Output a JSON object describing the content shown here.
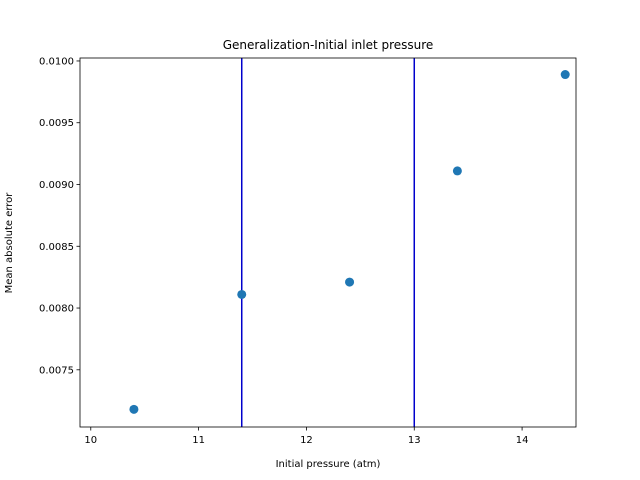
{
  "chart_data": {
    "type": "scatter",
    "title": "Generalization-Initial inlet pressure",
    "xlabel": "Initial pressure (atm)",
    "ylabel": "Mean absolute error",
    "xlim": [
      9.9,
      14.5
    ],
    "ylim": [
      0.007037,
      0.010024
    ],
    "x_ticks": [
      10,
      11,
      12,
      13,
      14
    ],
    "y_ticks": [
      0.0075,
      0.008,
      0.0085,
      0.009,
      0.0095,
      0.01
    ],
    "y_tick_labels": [
      "0.0075",
      "0.0080",
      "0.0085",
      "0.0090",
      "0.0095",
      "0.0100"
    ],
    "series": [
      {
        "x": [
          10.4,
          11.4,
          12.4,
          13.4,
          14.4
        ],
        "y": [
          0.00718,
          0.00811,
          0.00821,
          0.00911,
          0.00989
        ],
        "color": "#1f77b4"
      }
    ],
    "vlines": [
      {
        "x": 11.4,
        "color": "#0000cc"
      },
      {
        "x": 13.0,
        "color": "#0000cc"
      }
    ],
    "grid": false,
    "legend": "none"
  }
}
